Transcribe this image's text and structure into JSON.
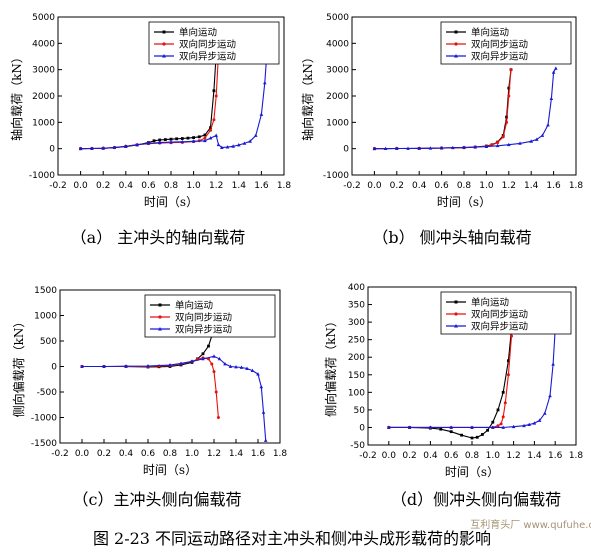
{
  "figure_caption": "图 2-23  不同运动路径对主冲头和侧冲头成形载荷的影响",
  "watermark": "互利育头厂 www.qufuhe.com",
  "colors": {
    "single": "#000000",
    "dual_sync": "#e8120c",
    "dual_async": "#1a1ad6"
  },
  "legend": [
    "单向运动",
    "双向同步运动",
    "双向异步运动"
  ],
  "chart_data": [
    {
      "type": "line",
      "caption": "（a）  主冲头的轴向载荷",
      "xlabel": "时间（s）",
      "ylabel": "轴向载荷（kN）",
      "xlim": [
        -0.2,
        1.8
      ],
      "ylim": [
        -1000,
        5000
      ],
      "xticks": [
        "-0.2",
        "0.0",
        "0.2",
        "0.4",
        "0.6",
        "0.8",
        "1.0",
        "1.2",
        "1.4",
        "1.6",
        "1.8"
      ],
      "yticks": [
        "-1000",
        "0",
        "1000",
        "2000",
        "3000",
        "4000",
        "5000"
      ],
      "legend_position": "top-right",
      "series": [
        {
          "name": "单向运动",
          "marker": "square",
          "x": [
            0,
            0.1,
            0.2,
            0.3,
            0.4,
            0.5,
            0.6,
            0.65,
            0.7,
            0.75,
            0.8,
            0.85,
            0.9,
            0.95,
            1.0,
            1.05,
            1.1,
            1.15,
            1.18,
            1.2,
            1.22
          ],
          "y": [
            0,
            5,
            15,
            40,
            80,
            140,
            230,
            300,
            330,
            345,
            360,
            375,
            385,
            400,
            420,
            450,
            520,
            800,
            2200,
            3600,
            3650
          ]
        },
        {
          "name": "双向同步运动",
          "marker": "circle",
          "x": [
            0,
            0.1,
            0.2,
            0.3,
            0.4,
            0.5,
            0.6,
            0.7,
            0.8,
            0.9,
            1.0,
            1.05,
            1.1,
            1.15,
            1.18,
            1.2,
            1.22
          ],
          "y": [
            0,
            5,
            15,
            40,
            90,
            150,
            190,
            210,
            225,
            240,
            270,
            300,
            400,
            700,
            1100,
            2000,
            3600
          ]
        },
        {
          "name": "双向异步运动",
          "marker": "triangle",
          "x": [
            0,
            0.1,
            0.2,
            0.3,
            0.4,
            0.5,
            0.6,
            0.7,
            0.8,
            0.9,
            1.0,
            1.1,
            1.15,
            1.2,
            1.22,
            1.25,
            1.3,
            1.35,
            1.4,
            1.45,
            1.5,
            1.55,
            1.6,
            1.63,
            1.65
          ],
          "y": [
            0,
            5,
            15,
            40,
            90,
            150,
            200,
            230,
            250,
            260,
            280,
            300,
            400,
            500,
            150,
            40,
            60,
            90,
            140,
            200,
            280,
            500,
            1300,
            2500,
            3700
          ]
        }
      ]
    },
    {
      "type": "line",
      "caption": "（b）  侧冲头轴向载荷",
      "xlabel": "时间（s）",
      "ylabel": "轴向载荷（kN）",
      "xlim": [
        -0.2,
        1.8
      ],
      "ylim": [
        -1000,
        5000
      ],
      "xticks": [
        "-0.2",
        "0.0",
        "0.2",
        "0.4",
        "0.6",
        "0.8",
        "1.0",
        "1.2",
        "1.4",
        "1.6",
        "1.8"
      ],
      "yticks": [
        "-1000",
        "0",
        "1000",
        "2000",
        "3000",
        "4000",
        "5000"
      ],
      "legend_position": "top-right",
      "series": [
        {
          "name": "单向运动",
          "marker": "square",
          "x": [
            0,
            0.2,
            0.4,
            0.6,
            0.8,
            0.9,
            1.0,
            1.05,
            1.1,
            1.15,
            1.18,
            1.2,
            1.22
          ],
          "y": [
            0,
            5,
            10,
            20,
            40,
            60,
            100,
            150,
            250,
            500,
            1200,
            2300,
            3000
          ]
        },
        {
          "name": "双向同步运动",
          "marker": "circle",
          "x": [
            0,
            0.2,
            0.4,
            0.6,
            0.8,
            0.9,
            1.0,
            1.05,
            1.1,
            1.15,
            1.18,
            1.2,
            1.22
          ],
          "y": [
            0,
            5,
            10,
            20,
            35,
            55,
            90,
            140,
            230,
            450,
            1000,
            2000,
            3000
          ]
        },
        {
          "name": "双向异步运动",
          "marker": "triangle",
          "x": [
            0,
            0.1,
            0.2,
            0.3,
            0.4,
            0.5,
            0.6,
            0.7,
            0.8,
            0.9,
            1.0,
            1.1,
            1.2,
            1.3,
            1.4,
            1.45,
            1.5,
            1.55,
            1.58,
            1.6,
            1.62
          ],
          "y": [
            0,
            2,
            5,
            8,
            12,
            18,
            25,
            35,
            45,
            60,
            80,
            110,
            150,
            200,
            280,
            350,
            500,
            900,
            1900,
            2900,
            3050
          ]
        }
      ]
    },
    {
      "type": "line",
      "caption": "（c）主冲头侧向偏载荷",
      "xlabel": "时间（s）",
      "ylabel": "侧向偏载荷（kN）",
      "xlim": [
        -0.2,
        1.8
      ],
      "ylim": [
        -1500,
        1500
      ],
      "xticks": [
        "-0.2",
        "0.0",
        "0.2",
        "0.4",
        "0.6",
        "0.8",
        "1.0",
        "1.2",
        "1.4",
        "1.6",
        "1.8"
      ],
      "yticks": [
        "-1500",
        "-1000",
        "-500",
        "0",
        "500",
        "1000",
        "1500"
      ],
      "legend_position": "top-right",
      "series": [
        {
          "name": "单向运动",
          "marker": "square",
          "x": [
            0,
            0.2,
            0.4,
            0.6,
            0.7,
            0.8,
            0.9,
            1.0,
            1.05,
            1.1,
            1.15,
            1.18,
            1.2,
            1.22,
            1.25
          ],
          "y": [
            0,
            0,
            0,
            -10,
            -5,
            0,
            30,
            80,
            150,
            250,
            400,
            600,
            1200,
            1350,
            1350
          ]
        },
        {
          "name": "双向同步运动",
          "marker": "circle",
          "x": [
            0,
            0.2,
            0.4,
            0.6,
            0.7,
            0.8,
            0.9,
            1.0,
            1.05,
            1.1,
            1.15,
            1.18,
            1.2,
            1.22,
            1.24
          ],
          "y": [
            0,
            0,
            0,
            0,
            10,
            20,
            50,
            100,
            140,
            170,
            150,
            50,
            -100,
            -500,
            -1000
          ]
        },
        {
          "name": "双向异步运动",
          "marker": "triangle",
          "x": [
            0,
            0.2,
            0.4,
            0.6,
            0.8,
            0.9,
            1.0,
            1.1,
            1.2,
            1.25,
            1.3,
            1.35,
            1.4,
            1.45,
            1.5,
            1.55,
            1.6,
            1.63,
            1.65,
            1.67
          ],
          "y": [
            0,
            0,
            5,
            10,
            30,
            60,
            100,
            150,
            200,
            150,
            50,
            0,
            -10,
            -20,
            -40,
            -80,
            -150,
            -400,
            -900,
            -1450
          ]
        }
      ]
    },
    {
      "type": "line",
      "caption": "（d）侧冲头侧向偏载荷",
      "xlabel": "时间（s）",
      "ylabel": "侧向偏载荷（kN）",
      "xlim": [
        -0.2,
        1.8
      ],
      "ylim": [
        -50,
        400
      ],
      "xticks": [
        "-0.2",
        "0.0",
        "0.2",
        "0.4",
        "0.6",
        "0.8",
        "1.0",
        "1.2",
        "1.4",
        "1.6",
        "1.8"
      ],
      "yticks": [
        "-50",
        "0",
        "50",
        "100",
        "150",
        "200",
        "250",
        "300",
        "350",
        "400"
      ],
      "legend_position": "top-right",
      "series": [
        {
          "name": "单向运动",
          "marker": "square",
          "x": [
            0,
            0.2,
            0.4,
            0.5,
            0.6,
            0.7,
            0.8,
            0.85,
            0.9,
            0.95,
            1.0,
            1.05,
            1.1,
            1.15,
            1.18,
            1.2
          ],
          "y": [
            0,
            0,
            -2,
            -5,
            -12,
            -22,
            -30,
            -28,
            -20,
            -8,
            15,
            50,
            100,
            190,
            280,
            320
          ]
        },
        {
          "name": "双向同步运动",
          "marker": "circle",
          "x": [
            0,
            0.2,
            0.4,
            0.6,
            0.8,
            1.0,
            1.05,
            1.08,
            1.1,
            1.12,
            1.15,
            1.18,
            1.2
          ],
          "y": [
            0,
            0,
            0,
            0,
            0,
            0,
            5,
            10,
            30,
            70,
            150,
            260,
            350
          ]
        },
        {
          "name": "双向异步运动",
          "marker": "triangle",
          "x": [
            0,
            0.2,
            0.4,
            0.6,
            0.8,
            1.0,
            1.1,
            1.2,
            1.3,
            1.35,
            1.4,
            1.45,
            1.5,
            1.55,
            1.58,
            1.6,
            1.62
          ],
          "y": [
            0,
            0,
            0,
            0,
            0,
            0,
            0,
            2,
            5,
            8,
            12,
            20,
            40,
            90,
            180,
            280,
            360
          ]
        }
      ]
    }
  ]
}
